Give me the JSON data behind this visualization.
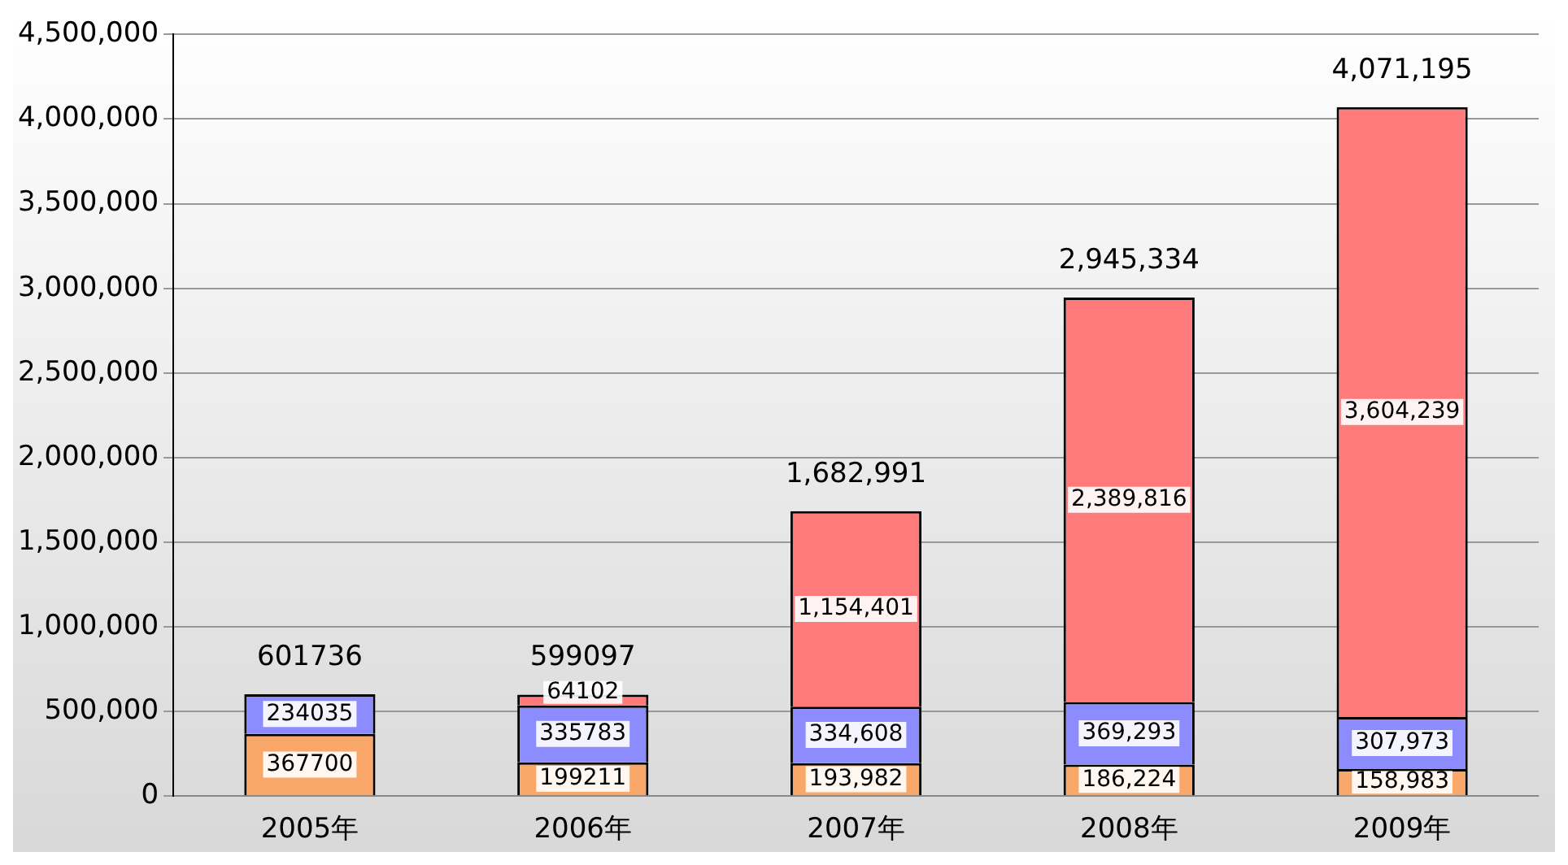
{
  "chart_data": {
    "type": "bar",
    "stacked": true,
    "categories": [
      "2005年",
      "2006年",
      "2007年",
      "2008年",
      "2009年"
    ],
    "series": [
      {
        "color": "#f9a86a",
        "values": [
          367700,
          199211,
          193982,
          186224,
          158983
        ],
        "value_labels": [
          "367700",
          "199211",
          "193,982",
          "186,224",
          "158,983"
        ]
      },
      {
        "color": "#8c8cff",
        "values": [
          234035,
          335783,
          334608,
          369293,
          307973
        ],
        "value_labels": [
          "234035",
          "335783",
          "334,608",
          "369,293",
          "307,973"
        ]
      },
      {
        "color": "#ff7a7a",
        "values": [
          null,
          64102,
          1154401,
          2389816,
          3604239
        ],
        "value_labels": [
          null,
          "64102",
          "1,154,401",
          "2,389,816",
          "3,604,239"
        ]
      }
    ],
    "totals": [
      "601736",
      "599097",
      "1,682,991",
      "2,945,334",
      "4,071,195"
    ],
    "ylim": [
      0,
      4500000
    ],
    "yticks": [
      {
        "value": 0,
        "label": "0"
      },
      {
        "value": 500000,
        "label": "500,000"
      },
      {
        "value": 1000000,
        "label": "1,000,000"
      },
      {
        "value": 1500000,
        "label": "1,500,000"
      },
      {
        "value": 2000000,
        "label": "2,000,000"
      },
      {
        "value": 2500000,
        "label": "2,500,000"
      },
      {
        "value": 3000000,
        "label": "3,000,000"
      },
      {
        "value": 3500000,
        "label": "3,500,000"
      },
      {
        "value": 4000000,
        "label": "4,000,000"
      },
      {
        "value": 4500000,
        "label": "4,500,000"
      }
    ],
    "grid": "y",
    "legend": false
  }
}
